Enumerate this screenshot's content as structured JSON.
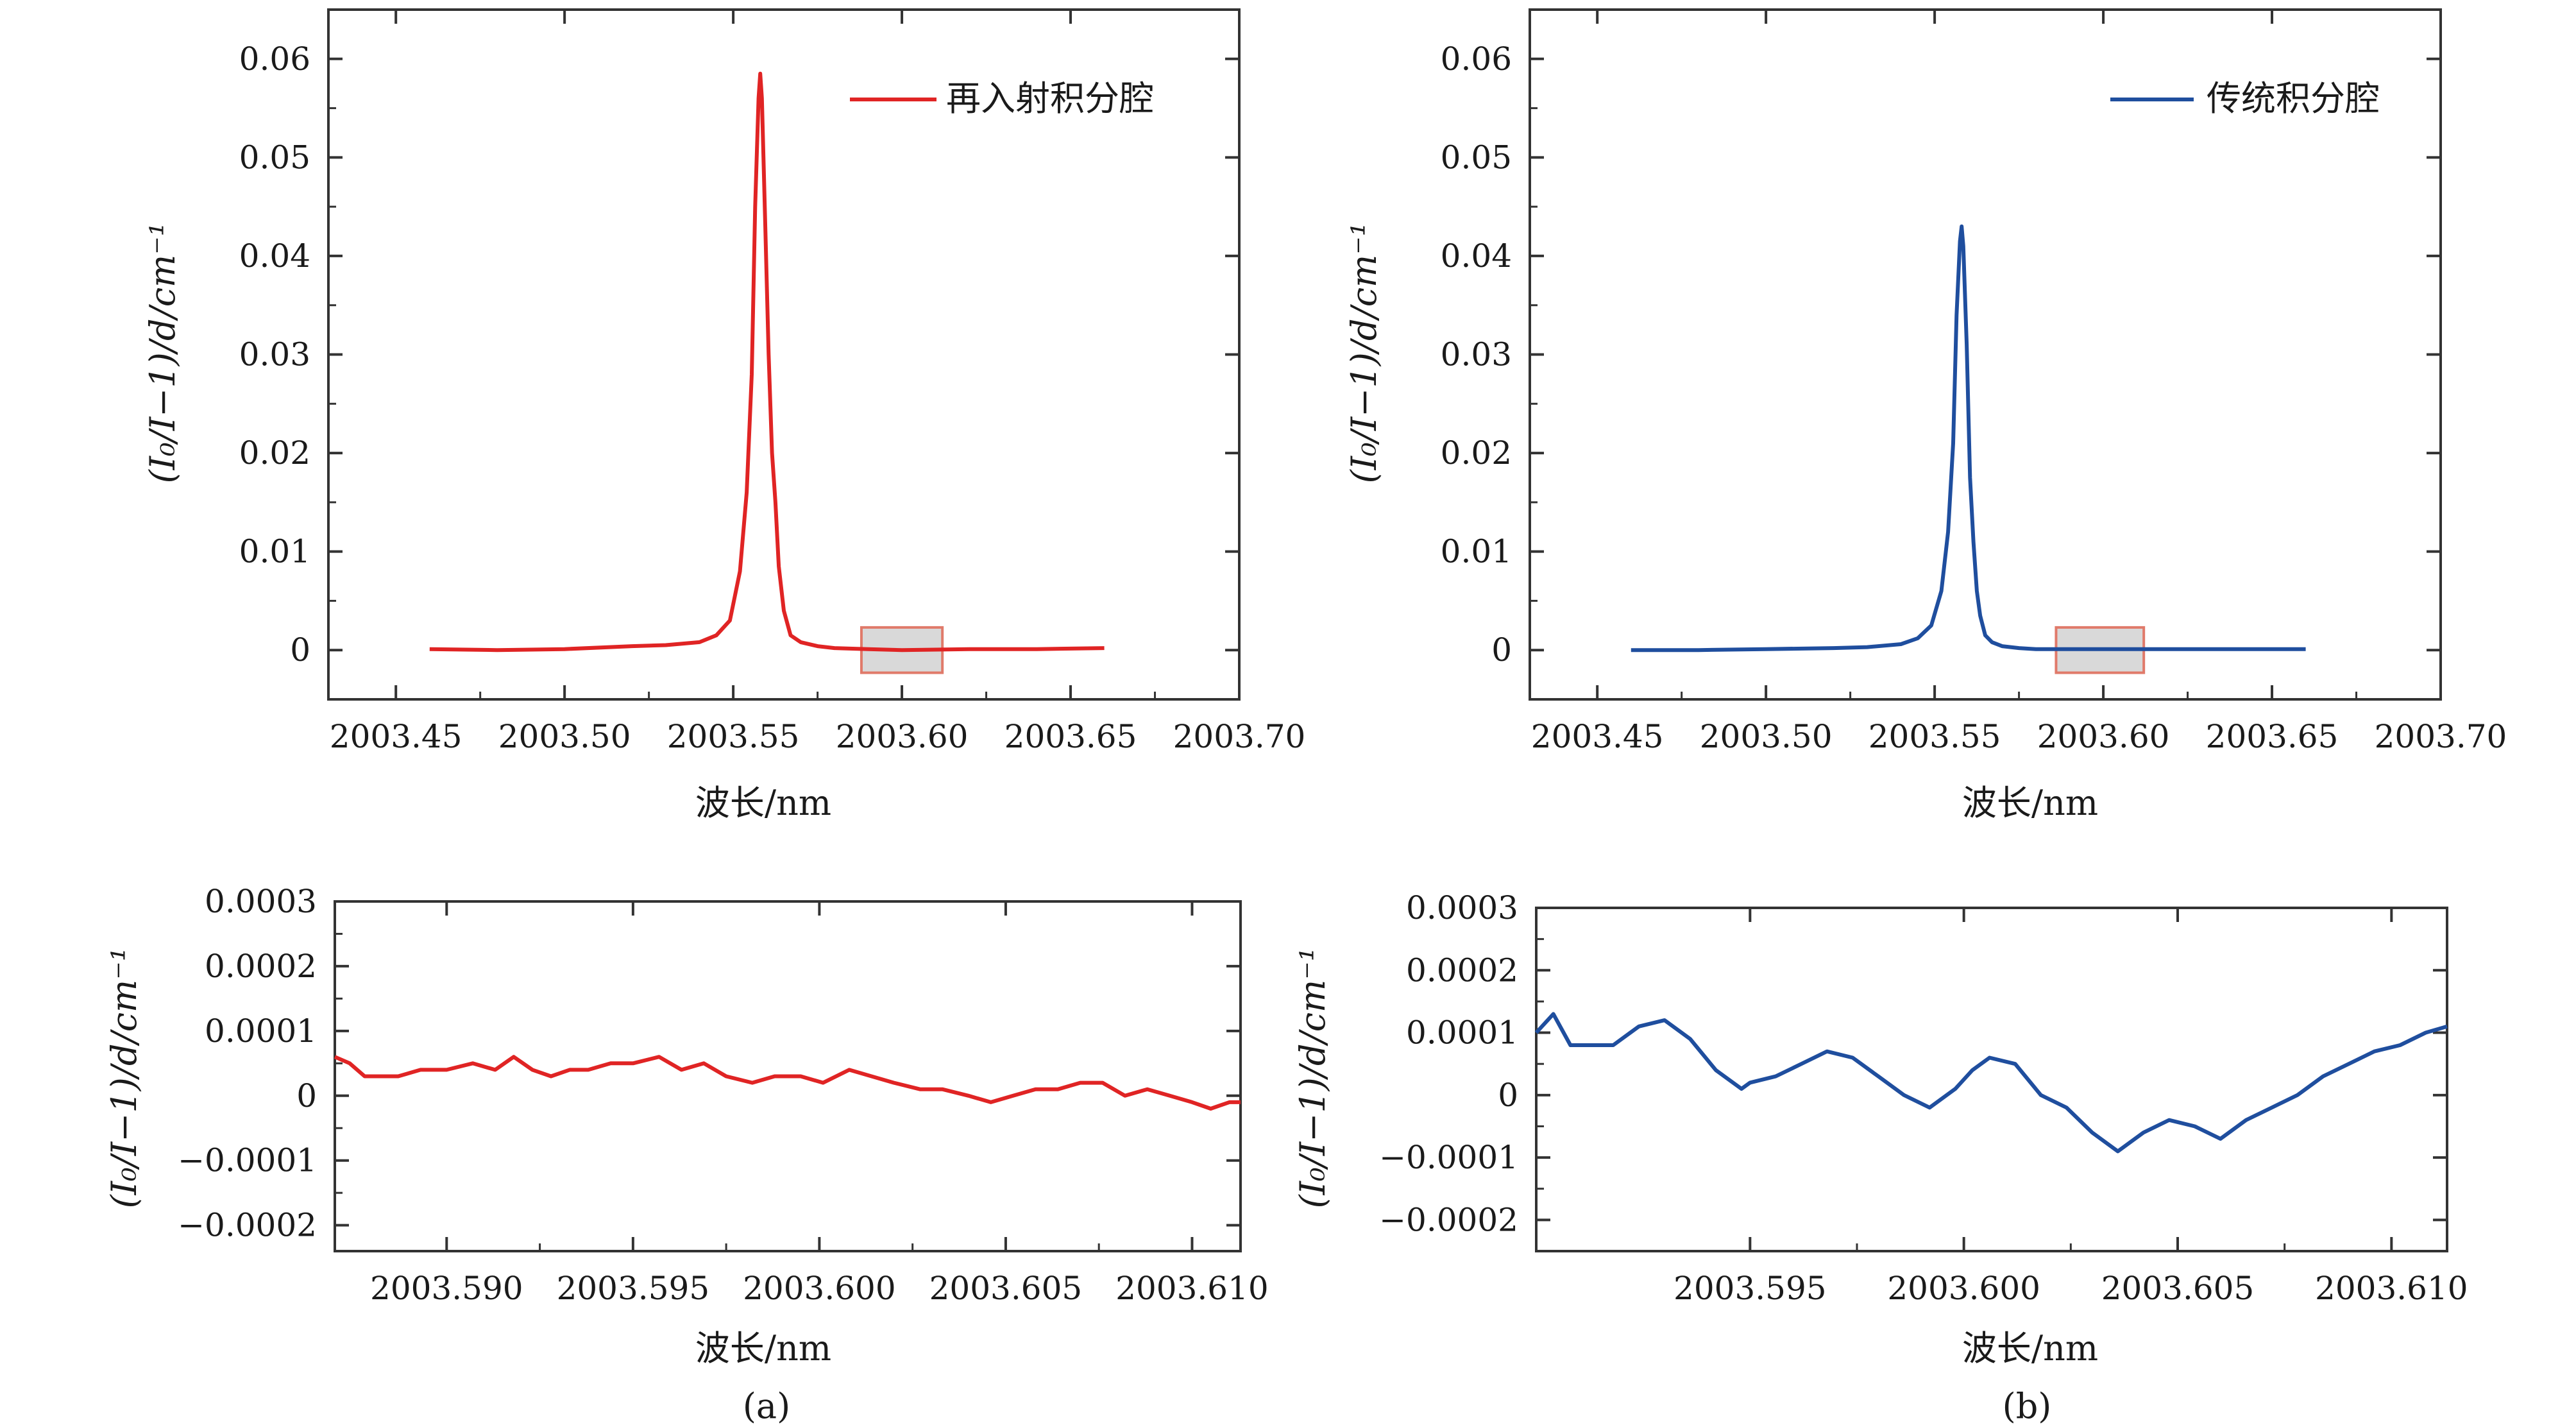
{
  "figure": {
    "caption_a": "(a)",
    "caption_b": "(b)"
  },
  "colors": {
    "red": "#e02424",
    "blue": "#1f4e9e",
    "box_fill": "#d9d9d9",
    "box_stroke": "#e07a6a",
    "axis": "#333333"
  },
  "chart_data": [
    {
      "id": "a-top",
      "type": "line",
      "title": "",
      "xlabel": "波长/nm",
      "ylabel": "(I₀/I−1)/d/cm⁻¹",
      "xlim": [
        2003.43,
        2003.7
      ],
      "ylim": [
        -0.005,
        0.065
      ],
      "xticks": [
        2003.45,
        2003.5,
        2003.55,
        2003.6,
        2003.65,
        2003.7
      ],
      "xtick_labels": [
        "2003.45",
        "2003.50",
        "2003.55",
        "2003.60",
        "2003.65",
        "2003.70"
      ],
      "yticks": [
        0,
        0.01,
        0.02,
        0.03,
        0.04,
        0.05,
        0.06
      ],
      "ytick_labels": [
        "0",
        "0.01",
        "0.02",
        "0.03",
        "0.04",
        "0.05",
        "0.06"
      ],
      "highlight_box": {
        "x": [
          2003.588,
          2003.612
        ],
        "y": [
          -0.0023,
          0.0023
        ]
      },
      "series": [
        {
          "name": "再入射积分腔",
          "color": "#e02424",
          "x": [
            2003.46,
            2003.48,
            2003.5,
            2003.52,
            2003.53,
            2003.54,
            2003.545,
            2003.549,
            2003.552,
            2003.554,
            2003.5555,
            2003.5565,
            2003.5575,
            2003.558,
            2003.5585,
            2003.5595,
            2003.5605,
            2003.5615,
            2003.5625,
            2003.5635,
            2003.565,
            2003.567,
            2003.57,
            2003.575,
            2003.58,
            2003.59,
            2003.6,
            2003.62,
            2003.64,
            2003.66
          ],
          "y": [
            0.0001,
            0.0,
            0.0001,
            0.0004,
            0.0005,
            0.0008,
            0.0015,
            0.003,
            0.008,
            0.016,
            0.028,
            0.045,
            0.056,
            0.0585,
            0.056,
            0.043,
            0.03,
            0.02,
            0.015,
            0.0085,
            0.004,
            0.0015,
            0.0008,
            0.0004,
            0.0002,
            0.0001,
            0.0,
            0.0001,
            0.0001,
            0.0002
          ]
        }
      ]
    },
    {
      "id": "b-top",
      "type": "line",
      "title": "",
      "xlabel": "波长/nm",
      "ylabel": "(I₀/I−1)/d/cm⁻¹",
      "xlim": [
        2003.43,
        2003.7
      ],
      "ylim": [
        -0.005,
        0.065
      ],
      "xticks": [
        2003.45,
        2003.5,
        2003.55,
        2003.6,
        2003.65,
        2003.7
      ],
      "xtick_labels": [
        "2003.45",
        "2003.50",
        "2003.55",
        "2003.60",
        "2003.65",
        "2003.70"
      ],
      "yticks": [
        0,
        0.01,
        0.02,
        0.03,
        0.04,
        0.05,
        0.06
      ],
      "ytick_labels": [
        "0",
        "0.01",
        "0.02",
        "0.03",
        "0.04",
        "0.05",
        "0.06"
      ],
      "highlight_box": {
        "x": [
          2003.586,
          2003.612
        ],
        "y": [
          -0.0023,
          0.0023
        ]
      },
      "series": [
        {
          "name": "传统积分腔",
          "color": "#1f4e9e",
          "x": [
            2003.46,
            2003.48,
            2003.5,
            2003.52,
            2003.53,
            2003.54,
            2003.545,
            2003.549,
            2003.552,
            2003.554,
            2003.5555,
            2003.5565,
            2003.5575,
            2003.558,
            2003.5585,
            2003.5595,
            2003.5605,
            2003.5615,
            2003.5625,
            2003.5635,
            2003.565,
            2003.567,
            2003.57,
            2003.575,
            2003.58,
            2003.59,
            2003.6,
            2003.62,
            2003.64,
            2003.66
          ],
          "y": [
            0.0,
            0.0,
            0.0001,
            0.0002,
            0.0003,
            0.0006,
            0.0012,
            0.0025,
            0.006,
            0.012,
            0.021,
            0.034,
            0.0415,
            0.043,
            0.041,
            0.031,
            0.0175,
            0.011,
            0.006,
            0.0035,
            0.0015,
            0.0008,
            0.0004,
            0.0002,
            0.0001,
            0.0001,
            0.0001,
            0.0001,
            0.0001,
            0.0001
          ]
        }
      ]
    },
    {
      "id": "a-bottom",
      "type": "line",
      "title": "",
      "xlabel": "波长/nm",
      "ylabel": "(I₀/I−1)/d/cm⁻¹",
      "xlim": [
        2003.587,
        2003.6113
      ],
      "ylim": [
        -0.00024,
        0.0003
      ],
      "xticks": [
        2003.59,
        2003.595,
        2003.6,
        2003.605,
        2003.61
      ],
      "xtick_labels": [
        "2003.590",
        "2003.595",
        "2003.600",
        "2003.605",
        "2003.610"
      ],
      "yticks": [
        -0.0002,
        -0.0001,
        0,
        0.0001,
        0.0002,
        0.0003
      ],
      "ytick_labels": [
        "−0.0002",
        "−0.0001",
        "0",
        "0.0001",
        "0.0002",
        "0.0003"
      ],
      "series": [
        {
          "name": "再入射积分腔 (zoom)",
          "color": "#e02424",
          "x": [
            2003.587,
            2003.5874,
            2003.5878,
            2003.5882,
            2003.5887,
            2003.5893,
            2003.59,
            2003.5907,
            2003.5913,
            2003.5918,
            2003.5923,
            2003.5928,
            2003.5933,
            2003.5938,
            2003.5944,
            2003.595,
            2003.5957,
            2003.5963,
            2003.5969,
            2003.5975,
            2003.5982,
            2003.5988,
            2003.5995,
            2003.6001,
            2003.6008,
            2003.6014,
            2003.602,
            2003.6027,
            2003.6033,
            2003.604,
            2003.6046,
            2003.6052,
            2003.6058,
            2003.6064,
            2003.607,
            2003.6076,
            2003.6082,
            2003.6088,
            2003.6094,
            2003.61,
            2003.6105,
            2003.611,
            2003.6113
          ],
          "y": [
            6e-05,
            5e-05,
            3e-05,
            3e-05,
            3e-05,
            4e-05,
            4e-05,
            5e-05,
            4e-05,
            6e-05,
            4e-05,
            3e-05,
            4e-05,
            4e-05,
            5e-05,
            5e-05,
            6e-05,
            4e-05,
            5e-05,
            3e-05,
            2e-05,
            3e-05,
            3e-05,
            2e-05,
            4e-05,
            3e-05,
            2e-05,
            1e-05,
            1e-05,
            0.0,
            -1e-05,
            0.0,
            1e-05,
            1e-05,
            2e-05,
            2e-05,
            0.0,
            1e-05,
            0.0,
            -1e-05,
            -2e-05,
            -1e-05,
            -1e-05
          ]
        }
      ]
    },
    {
      "id": "b-bottom",
      "type": "line",
      "title": "",
      "xlabel": "波长/nm",
      "ylabel": "(I₀/I−1)/d/cm⁻¹",
      "xlim": [
        2003.59,
        2003.6113
      ],
      "ylim": [
        -0.00025,
        0.0003
      ],
      "xticks": [
        2003.595,
        2003.6,
        2003.605,
        2003.61
      ],
      "xtick_labels": [
        "2003.595",
        "2003.600",
        "2003.605",
        "2003.610"
      ],
      "yticks": [
        -0.0002,
        -0.0001,
        0,
        0.0001,
        0.0002,
        0.0003
      ],
      "ytick_labels": [
        "−0.0002",
        "−0.0001",
        "0",
        "0.0001",
        "0.0002",
        "0.0003"
      ],
      "series": [
        {
          "name": "传统积分腔 (zoom)",
          "color": "#1f4e9e",
          "x": [
            2003.59,
            2003.5904,
            2003.5908,
            2003.5912,
            2003.5918,
            2003.5924,
            2003.593,
            2003.5936,
            2003.5942,
            2003.5948,
            2003.595,
            2003.5956,
            2003.5962,
            2003.5968,
            2003.5974,
            2003.598,
            2003.5986,
            2003.5992,
            2003.5998,
            2003.6002,
            2003.6006,
            2003.6012,
            2003.6018,
            2003.6024,
            2003.603,
            2003.6036,
            2003.6042,
            2003.6048,
            2003.6054,
            2003.606,
            2003.6066,
            2003.6072,
            2003.6078,
            2003.6084,
            2003.609,
            2003.6096,
            2003.6102,
            2003.6108,
            2003.6113
          ],
          "y": [
            0.0001,
            0.00013,
            8e-05,
            8e-05,
            8e-05,
            0.00011,
            0.00012,
            9e-05,
            4e-05,
            1e-05,
            2e-05,
            3e-05,
            5e-05,
            7e-05,
            6e-05,
            3e-05,
            0.0,
            -2e-05,
            1e-05,
            4e-05,
            6e-05,
            5e-05,
            0.0,
            -2e-05,
            -6e-05,
            -9e-05,
            -6e-05,
            -4e-05,
            -5e-05,
            -7e-05,
            -4e-05,
            -2e-05,
            0.0,
            3e-05,
            5e-05,
            7e-05,
            8e-05,
            0.0001,
            0.00011
          ]
        }
      ]
    }
  ]
}
